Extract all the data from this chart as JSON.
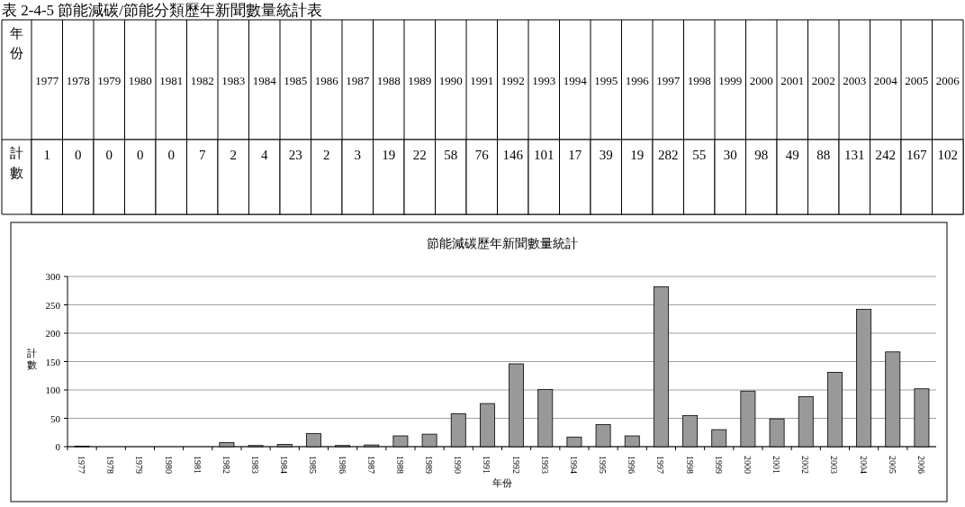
{
  "chart_data": [
    {
      "type": "heatmap",
      "title": "表 2-4-5 節能減碳/節能分類歷年新聞數量統計表",
      "xlabel": "年份",
      "categories": [
        "1977",
        "1978",
        "1979",
        "1980",
        "1981",
        "1982",
        "1983",
        "1984",
        "1985",
        "1986",
        "1987",
        "1988",
        "1989",
        "1990",
        "1991",
        "1992",
        "1993",
        "1994",
        "1995",
        "1996",
        "1997",
        "1998",
        "1999",
        "2000",
        "2001",
        "2002",
        "2003",
        "2004",
        "2005",
        "2006"
      ],
      "y_categories": [
        "計數"
      ],
      "data_labels": true,
      "cells": [
        [
          1,
          0,
          0,
          0,
          0,
          7,
          2,
          4,
          23,
          2,
          3,
          19,
          22,
          58,
          76,
          146,
          101,
          17,
          39,
          19,
          282,
          55,
          30,
          98,
          49,
          88,
          131,
          242,
          167,
          102
        ]
      ]
    },
    {
      "type": "bar",
      "title": "節能減碳歷年新聞數量統計",
      "xlabel": "年份",
      "ylabel": "計數",
      "categories": [
        "1977",
        "1978",
        "1979",
        "1980",
        "1981",
        "1982",
        "1983",
        "1984",
        "1985",
        "1986",
        "1987",
        "1988",
        "1989",
        "1990",
        "1991",
        "1992",
        "1993",
        "1994",
        "1995",
        "1996",
        "1997",
        "1998",
        "1999",
        "2000",
        "2001",
        "2002",
        "2003",
        "2004",
        "2005",
        "2006"
      ],
      "values": [
        1,
        0,
        0,
        0,
        0,
        7,
        2,
        4,
        23,
        2,
        3,
        19,
        22,
        58,
        76,
        146,
        101,
        17,
        39,
        19,
        282,
        55,
        30,
        98,
        49,
        88,
        131,
        242,
        167,
        102
      ],
      "color": "#999999",
      "ylim": [
        0,
        300
      ],
      "yticks": [
        0,
        50,
        100,
        150,
        200,
        250,
        300
      ],
      "grid": "y"
    }
  ]
}
